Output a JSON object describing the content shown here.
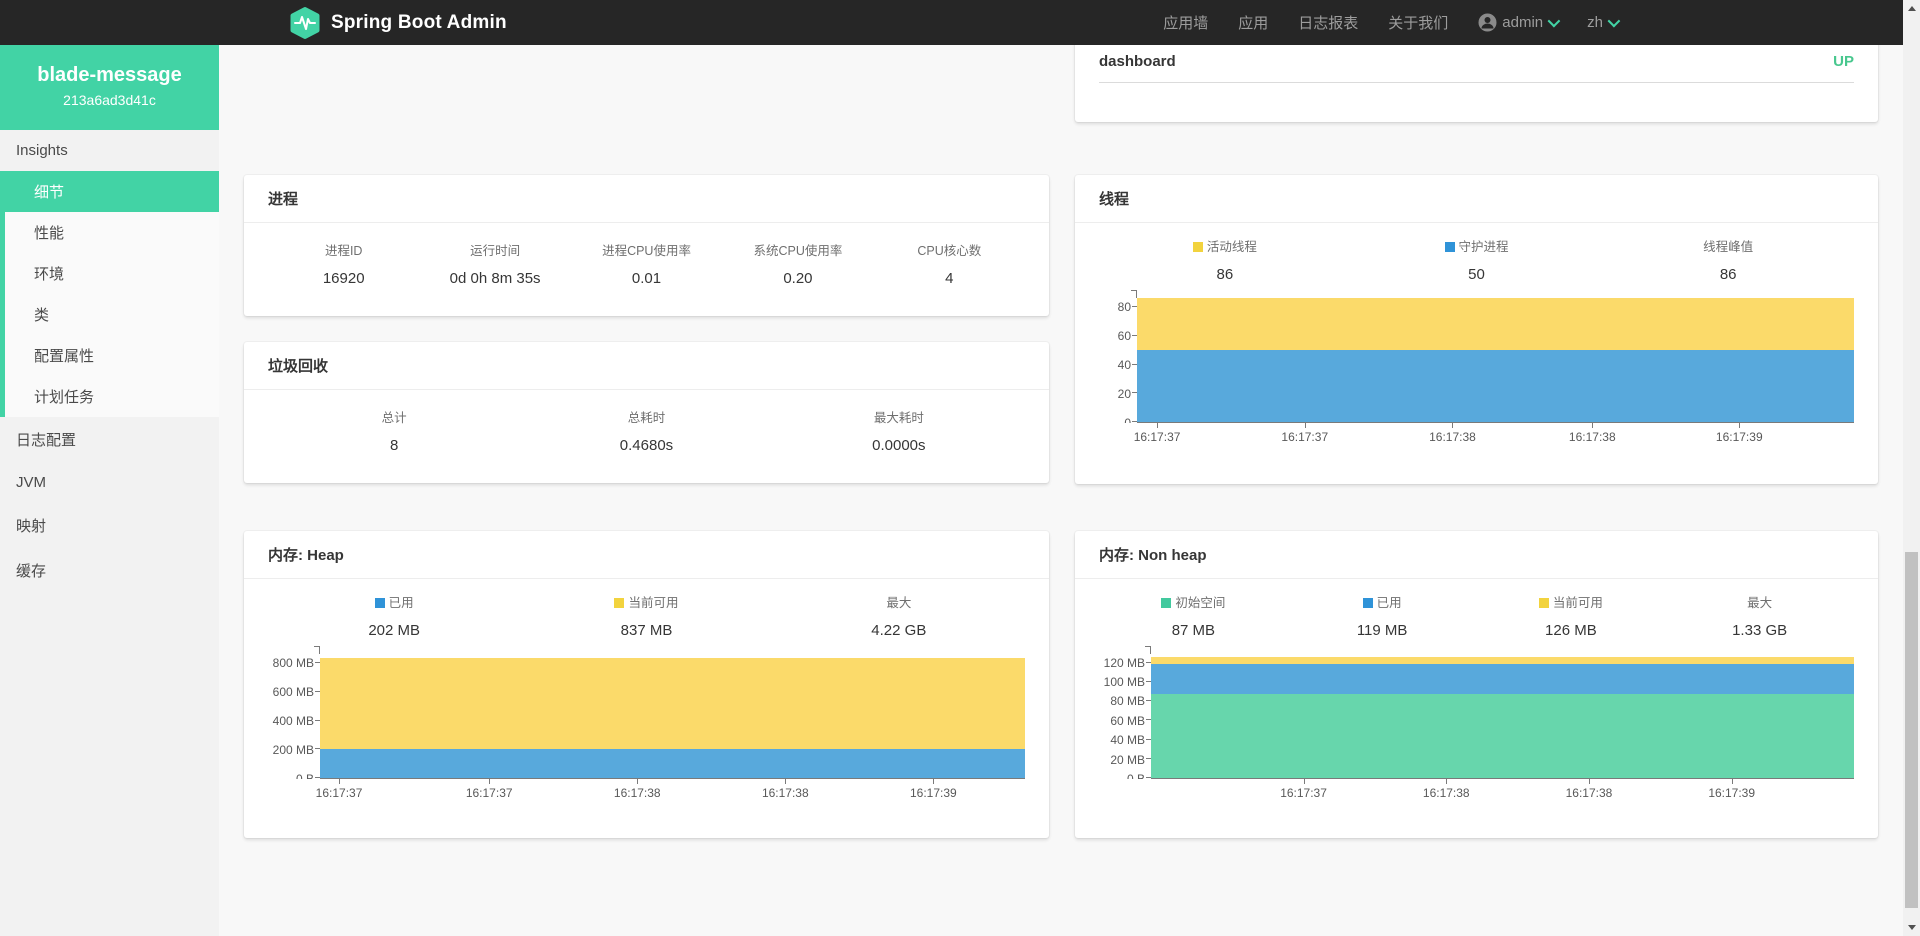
{
  "navbar": {
    "brand": "Spring Boot Admin",
    "links": [
      "应用墙",
      "应用",
      "日志报表",
      "关于我们"
    ],
    "user": "admin",
    "language": "zh"
  },
  "sidebar": {
    "app_name": "blade-message",
    "instance_id": "213a6ad3d41c",
    "items": [
      {
        "key": "insights",
        "label": "Insights",
        "level": "top",
        "selected": false,
        "group": true
      },
      {
        "key": "details",
        "label": "细节",
        "level": "sub",
        "selected": true
      },
      {
        "key": "performance",
        "label": "性能",
        "level": "sub",
        "selected": false
      },
      {
        "key": "environment",
        "label": "环境",
        "level": "sub",
        "selected": false
      },
      {
        "key": "classes",
        "label": "类",
        "level": "sub",
        "selected": false
      },
      {
        "key": "configuration-properties",
        "label": "配置属性",
        "level": "sub",
        "selected": false
      },
      {
        "key": "scheduled-tasks",
        "label": "计划任务",
        "level": "sub",
        "selected": false
      },
      {
        "key": "loggers",
        "label": "日志配置",
        "level": "top",
        "selected": false
      },
      {
        "key": "jvm",
        "label": "JVM",
        "level": "top",
        "selected": false
      },
      {
        "key": "mappings",
        "label": "映射",
        "level": "top",
        "selected": false
      },
      {
        "key": "caches",
        "label": "缓存",
        "level": "top",
        "selected": false
      }
    ]
  },
  "instance_card": {
    "title": "dashboard",
    "status": "UP",
    "status_color": "#48c78e"
  },
  "cards": {
    "process": {
      "title": "进程",
      "metrics": [
        {
          "label": "进程ID",
          "value": "16920"
        },
        {
          "label": "运行时间",
          "value": "0d 0h 8m 35s"
        },
        {
          "label": "进程CPU使用率",
          "value": "0.01"
        },
        {
          "label": "系统CPU使用率",
          "value": "0.20"
        },
        {
          "label": "CPU核心数",
          "value": "4"
        }
      ]
    },
    "gc": {
      "title": "垃圾回收",
      "metrics": [
        {
          "label": "总计",
          "value": "8"
        },
        {
          "label": "总耗时",
          "value": "0.4680s"
        },
        {
          "label": "最大耗时",
          "value": "0.0000s"
        }
      ]
    },
    "threads": {
      "title": "线程",
      "chart": "threads"
    },
    "heap": {
      "title": "内存: Heap",
      "chart": "heap"
    },
    "nonheap": {
      "title": "内存: Non heap",
      "chart": "nonheap"
    }
  },
  "colors": {
    "brand": "#42d3a5",
    "navbar_bg": "#262626",
    "status_up": "#48c78e"
  },
  "chart_data": [
    {
      "id": "threads",
      "type": "area",
      "title": "线程",
      "x_range": [
        "16:17:37",
        "16:17:39"
      ],
      "legend": [
        {
          "label": "活动线程",
          "value": "86",
          "color": "#f2d33e"
        },
        {
          "label": "守护进程",
          "value": "50",
          "color": "#2f93d8"
        },
        {
          "label": "线程峰值",
          "value": "86",
          "color": null
        }
      ],
      "ylim": [
        0,
        87
      ],
      "y_ticks": [
        {
          "label": "0",
          "value": 0
        },
        {
          "label": "20",
          "value": 20
        },
        {
          "label": "40",
          "value": 40
        },
        {
          "label": "60",
          "value": 60
        },
        {
          "label": "80",
          "value": 80
        }
      ],
      "x_ticks": [
        {
          "label": "16:17:37",
          "pos": 2.8
        },
        {
          "label": "16:17:37",
          "pos": 23.4
        },
        {
          "label": "16:17:38",
          "pos": 44
        },
        {
          "label": "16:17:38",
          "pos": 63.5
        },
        {
          "label": "16:17:39",
          "pos": 84
        }
      ],
      "layers": [
        {
          "name": "活动线程",
          "top": 86,
          "color": "#fbda6a"
        },
        {
          "name": "守护进程",
          "top": 50,
          "color": "#58a9dc"
        }
      ]
    },
    {
      "id": "heap",
      "type": "area",
      "title": "内存: Heap",
      "x_range": [
        "16:17:37",
        "16:17:39"
      ],
      "legend": [
        {
          "label": "已用",
          "value": "202 MB",
          "color": "#2f93d8"
        },
        {
          "label": "当前可用",
          "value": "837 MB",
          "color": "#f2d33e"
        },
        {
          "label": "最大",
          "value": "4.22 GB",
          "color": null
        }
      ],
      "ylim": [
        0,
        870
      ],
      "y_ticks": [
        {
          "label": "0 B",
          "value": 0
        },
        {
          "label": "200 MB",
          "value": 200
        },
        {
          "label": "400 MB",
          "value": 400
        },
        {
          "label": "600 MB",
          "value": 600
        },
        {
          "label": "800 MB",
          "value": 800
        }
      ],
      "x_ticks": [
        {
          "label": "16:17:37",
          "pos": 2.7
        },
        {
          "label": "16:17:37",
          "pos": 24
        },
        {
          "label": "16:17:38",
          "pos": 45
        },
        {
          "label": "16:17:38",
          "pos": 66
        },
        {
          "label": "16:17:39",
          "pos": 87
        }
      ],
      "layers": [
        {
          "name": "当前可用",
          "top": 837,
          "color": "#fbda6a"
        },
        {
          "name": "已用",
          "top": 202,
          "color": "#58a9dc"
        }
      ]
    },
    {
      "id": "nonheap",
      "type": "area",
      "title": "内存: Non heap",
      "x_range": [
        "16:17:37",
        "16:17:39"
      ],
      "legend": [
        {
          "label": "初始空间",
          "value": "87 MB",
          "color": "#42c99e"
        },
        {
          "label": "已用",
          "value": "119 MB",
          "color": "#2f93d8"
        },
        {
          "label": "当前可用",
          "value": "126 MB",
          "color": "#f2d33e"
        },
        {
          "label": "最大",
          "value": "1.33 GB",
          "color": null
        }
      ],
      "ylim": [
        0,
        130
      ],
      "y_ticks": [
        {
          "label": "0 B",
          "value": 0
        },
        {
          "label": "20 MB",
          "value": 20
        },
        {
          "label": "40 MB",
          "value": 40
        },
        {
          "label": "60 MB",
          "value": 60
        },
        {
          "label": "80 MB",
          "value": 80
        },
        {
          "label": "100 MB",
          "value": 100
        },
        {
          "label": "120 MB",
          "value": 120
        }
      ],
      "x_ticks": [
        {
          "label": "16:17:37",
          "pos": 21.7
        },
        {
          "label": "16:17:38",
          "pos": 42
        },
        {
          "label": "16:17:38",
          "pos": 62.3
        },
        {
          "label": "16:17:39",
          "pos": 82.6
        }
      ],
      "layers": [
        {
          "name": "当前可用",
          "top": 126,
          "color": "#fbda6a"
        },
        {
          "name": "已用",
          "top": 119,
          "color": "#58a9dc"
        },
        {
          "name": "初始空间",
          "top": 87,
          "color": "#67d6ac"
        }
      ]
    }
  ]
}
